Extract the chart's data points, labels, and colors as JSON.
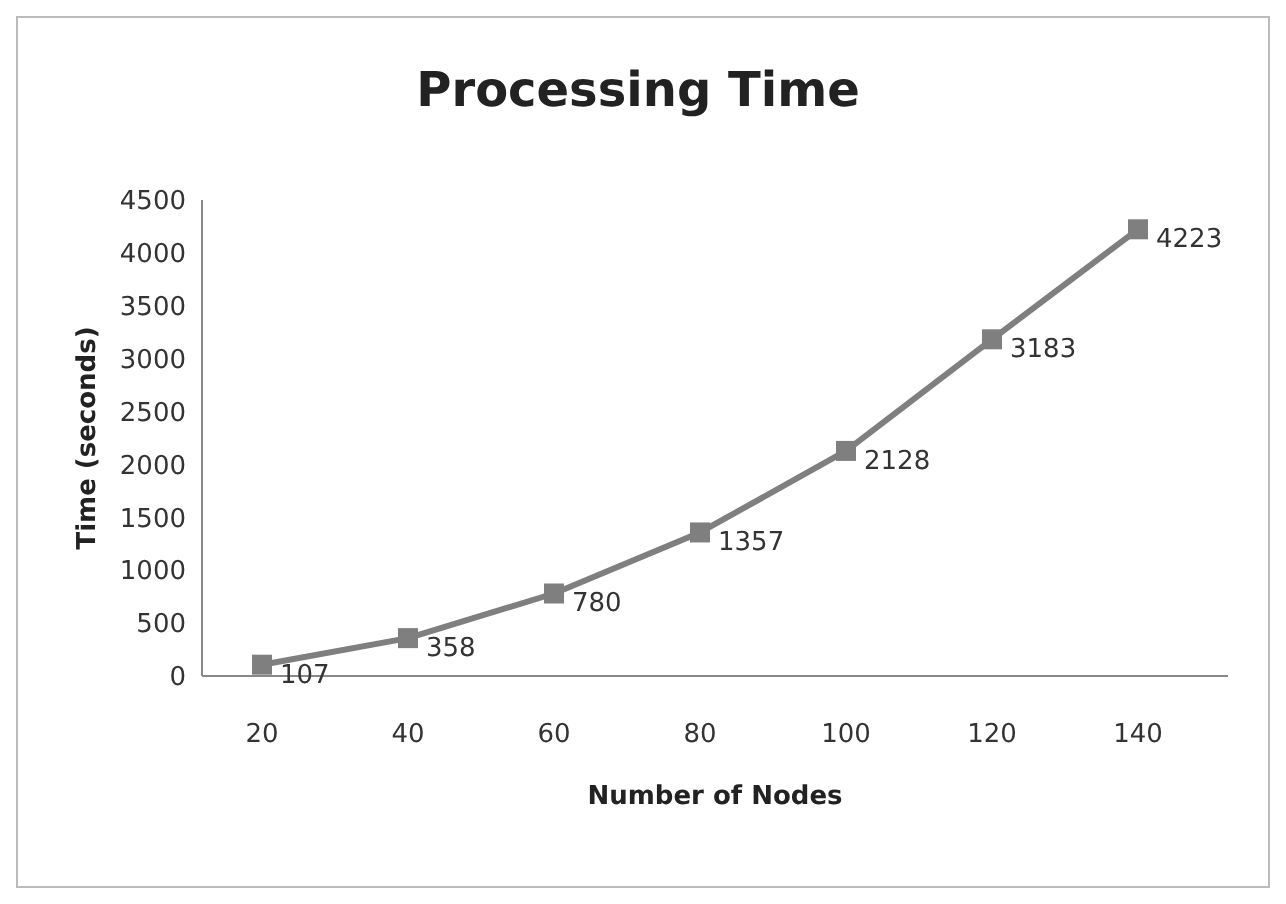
{
  "chart_data": {
    "type": "line",
    "title": "Processing Time",
    "xlabel": "Number of Nodes",
    "ylabel": "Time (seconds)",
    "categories": [
      "20",
      "40",
      "60",
      "80",
      "100",
      "120",
      "140"
    ],
    "series": [
      {
        "color": "#7f7f7f",
        "values": [
          107,
          358,
          780,
          1357,
          2128,
          3183,
          4223
        ]
      }
    ],
    "ylim": [
      0,
      4500
    ],
    "yticks": [
      0,
      500,
      1000,
      1500,
      2000,
      2500,
      3000,
      3500,
      4000,
      4500
    ],
    "data_labels": true,
    "marker": "square",
    "line_style": "solid"
  }
}
